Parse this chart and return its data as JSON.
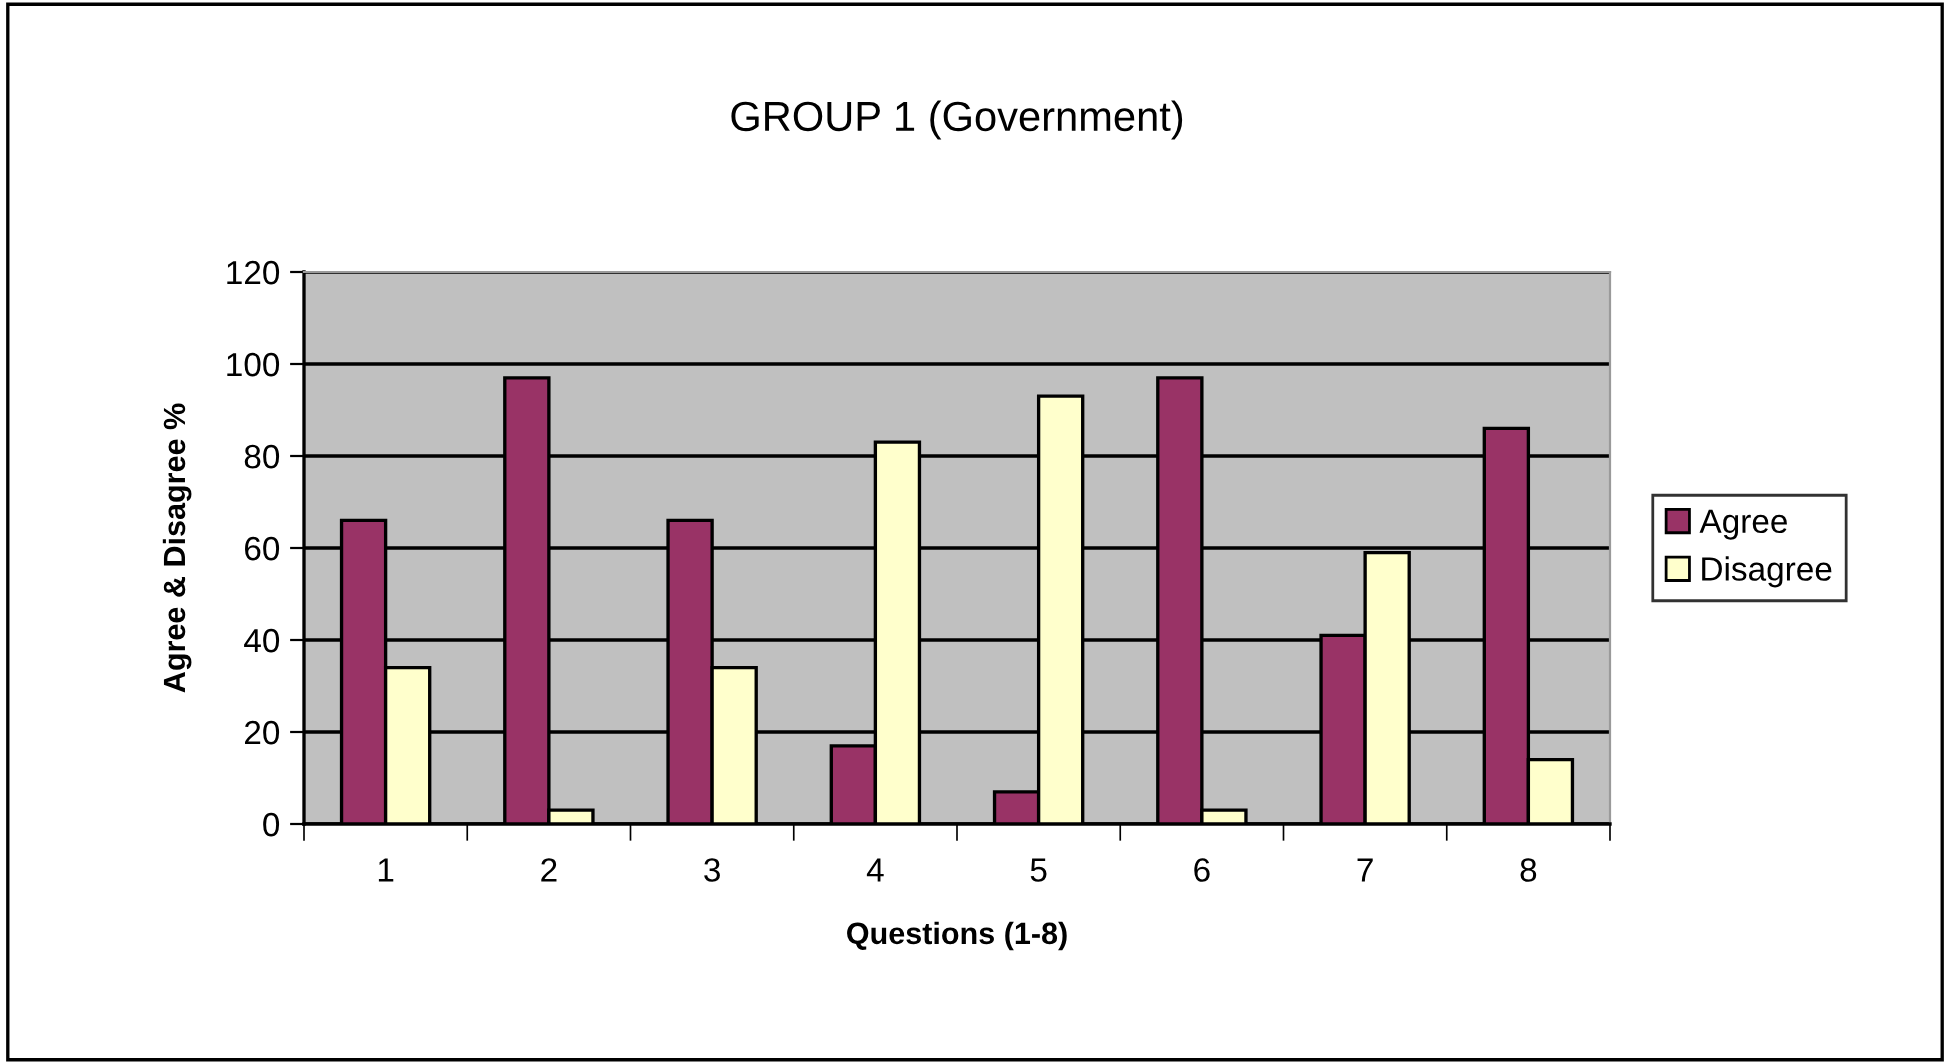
{
  "chart_data": {
    "type": "bar",
    "title": "GROUP 1 (Government)",
    "xlabel": "Questions (1-8)",
    "ylabel": "Agree & Disagree %",
    "categories": [
      "1",
      "2",
      "3",
      "4",
      "5",
      "6",
      "7",
      "8"
    ],
    "series": [
      {
        "name": "Agree",
        "color": "#993366",
        "values": [
          66,
          97,
          66,
          17,
          7,
          97,
          41,
          86
        ]
      },
      {
        "name": "Disagree",
        "color": "#ffffcc",
        "values": [
          34,
          3,
          34,
          83,
          93,
          3,
          59,
          14
        ]
      }
    ],
    "ylim": [
      0,
      120
    ],
    "yticks": [
      0,
      20,
      40,
      60,
      80,
      100,
      120
    ],
    "grid": "y",
    "legend": "right"
  }
}
